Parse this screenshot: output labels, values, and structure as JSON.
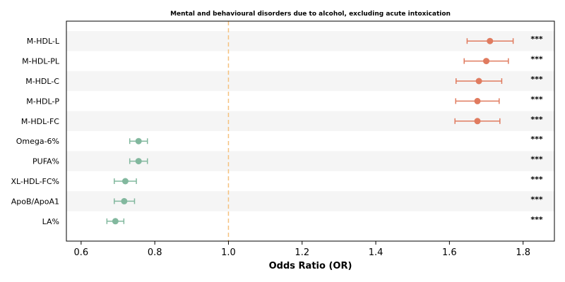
{
  "chart_data": {
    "type": "forest",
    "title": "Mental and behavioural disorders due to alcohol, excluding acute intoxication",
    "xlabel": "Odds Ratio (OR)",
    "xlim": [
      0.56,
      1.885
    ],
    "xticks": [
      0.6,
      0.8,
      1.0,
      1.2,
      1.4,
      1.6,
      1.8
    ],
    "xtick_labels": [
      "0.6",
      "0.8",
      "1.0",
      "1.2",
      "1.4",
      "1.6",
      "1.8"
    ],
    "reference_line": 1.0,
    "reference_color": "#f5c17e",
    "colors": {
      "risk": "#e07b5f",
      "protective": "#82b89e",
      "band": "#f5f5f5"
    },
    "rows": [
      {
        "label": "M-HDL-L",
        "or": 1.71,
        "lo": 1.648,
        "hi": 1.773,
        "sig": "***",
        "group": "risk"
      },
      {
        "label": "M-HDL-PL",
        "or": 1.7,
        "lo": 1.64,
        "hi": 1.76,
        "sig": "***",
        "group": "risk"
      },
      {
        "label": "M-HDL-C",
        "or": 1.68,
        "lo": 1.618,
        "hi": 1.742,
        "sig": "***",
        "group": "risk"
      },
      {
        "label": "M-HDL-P",
        "or": 1.676,
        "lo": 1.617,
        "hi": 1.735,
        "sig": "***",
        "group": "risk"
      },
      {
        "label": "M-HDL-FC",
        "or": 1.676,
        "lo": 1.615,
        "hi": 1.737,
        "sig": "***",
        "group": "risk"
      },
      {
        "label": "Omega-6%",
        "or": 0.756,
        "lo": 0.732,
        "hi": 0.78,
        "sig": "***",
        "group": "protective"
      },
      {
        "label": "PUFA%",
        "or": 0.756,
        "lo": 0.732,
        "hi": 0.78,
        "sig": "***",
        "group": "protective"
      },
      {
        "label": "XL-HDL-FC%",
        "or": 0.72,
        "lo": 0.69,
        "hi": 0.75,
        "sig": "***",
        "group": "protective"
      },
      {
        "label": "ApoB/ApoA1",
        "or": 0.717,
        "lo": 0.69,
        "hi": 0.745,
        "sig": "***",
        "group": "protective"
      },
      {
        "label": "LA%",
        "or": 0.693,
        "lo": 0.67,
        "hi": 0.716,
        "sig": "***",
        "group": "protective"
      }
    ]
  }
}
